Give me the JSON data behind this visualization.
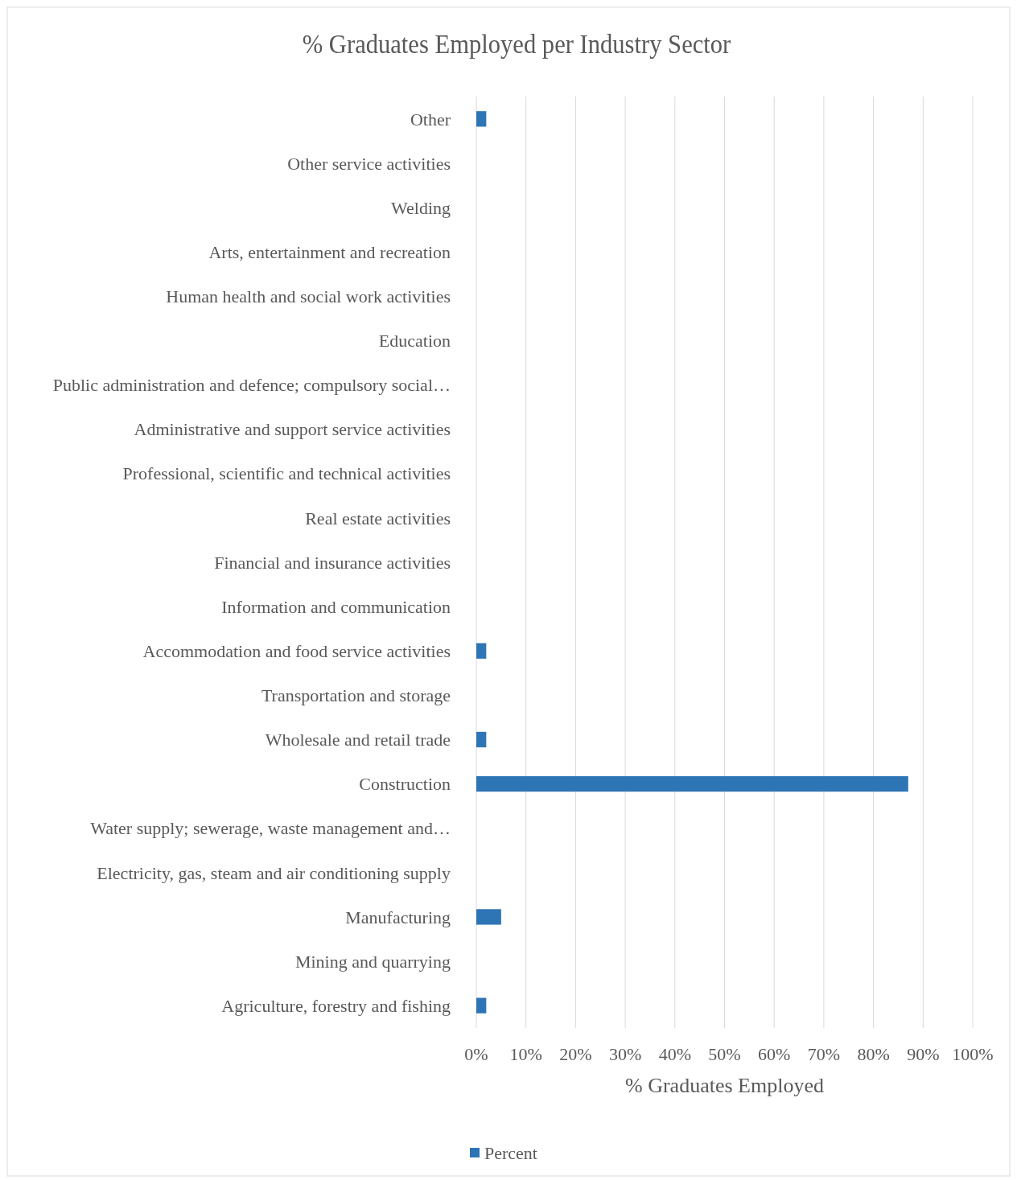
{
  "chart_data": {
    "type": "bar",
    "orientation": "horizontal",
    "title": "% Graduates Employed per Industry Sector",
    "xlabel": "% Graduates Employed",
    "categories": [
      "Other",
      "Other service activities",
      "Welding",
      "Arts, entertainment and recreation",
      "Human health and social work activities",
      "Education",
      "Public administration and defence; compulsory social…",
      "Administrative and support service activities",
      "Professional, scientific and technical activities",
      "Real estate activities",
      "Financial and insurance activities",
      "Information and communication",
      "Accommodation and food service activities",
      "Transportation and storage",
      "Wholesale and retail trade",
      "Construction",
      "Water supply; sewerage, waste management and…",
      "Electricity, gas, steam and air conditioning supply",
      "Manufacturing",
      "Mining and quarrying",
      "Agriculture, forestry and fishing"
    ],
    "series": [
      {
        "name": "Percent",
        "color": "#2e75b6",
        "values": [
          2,
          0,
          0,
          0,
          0,
          0,
          0,
          0,
          0,
          0,
          0,
          0,
          2,
          0,
          2,
          87,
          0,
          0,
          5,
          0,
          2
        ]
      }
    ],
    "xlim": [
      0,
      100
    ],
    "xticks": [
      {
        "value": 0,
        "label": "0%"
      },
      {
        "value": 10,
        "label": "10%"
      },
      {
        "value": 20,
        "label": "20%"
      },
      {
        "value": 30,
        "label": "30%"
      },
      {
        "value": 40,
        "label": "40%"
      },
      {
        "value": 50,
        "label": "50%"
      },
      {
        "value": 60,
        "label": "60%"
      },
      {
        "value": 70,
        "label": "70%"
      },
      {
        "value": 80,
        "label": "80%"
      },
      {
        "value": 90,
        "label": "90%"
      },
      {
        "value": 100,
        "label": "100%"
      }
    ],
    "grid": "x",
    "legend": "bottom"
  }
}
